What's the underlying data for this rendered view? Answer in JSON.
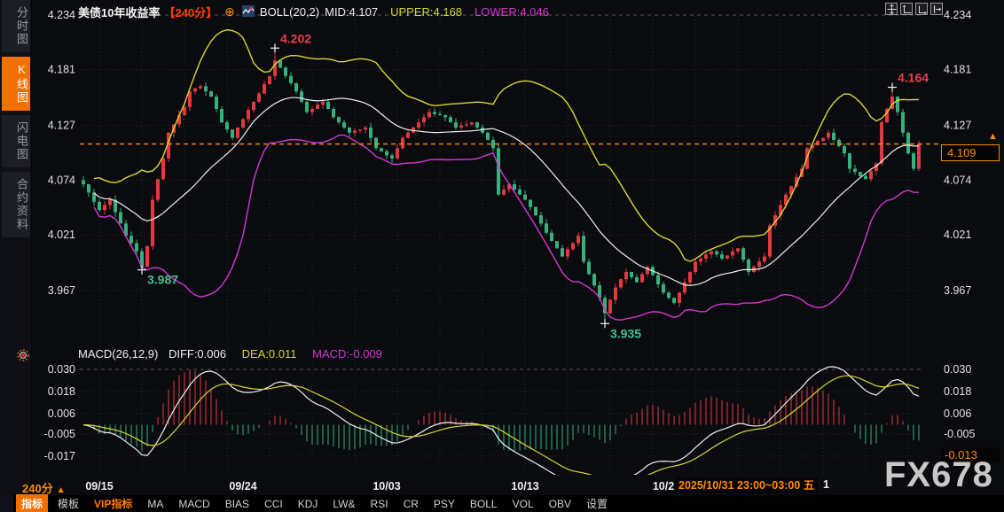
{
  "sidebar": {
    "tabs": [
      {
        "label": "分时图",
        "active": false
      },
      {
        "label": "K线图",
        "active": true
      },
      {
        "label": "闪电图",
        "active": false
      },
      {
        "label": "合约资料",
        "active": false
      }
    ]
  },
  "header": {
    "title": "美债10年收益率",
    "interval_tag": "【240分】",
    "expand_icon": "⊕",
    "boll_legend": {
      "name": "BOLL(20,2)",
      "mid": "MID:4.107",
      "upper": "UPPER:4.168",
      "lower": "LOWER:4.046"
    }
  },
  "macd_legend": {
    "name": "MACD(26,12,9)",
    "diff": "DIFF:0.006",
    "dea": "DEA:0.011",
    "macd": "MACD:-0.009"
  },
  "price_axis": {
    "left_labels": [
      "4.234",
      "4.181",
      "4.127",
      "4.074",
      "4.021",
      "3.967"
    ],
    "right_labels": [
      "4.234",
      "4.181",
      "4.127",
      "4.074",
      "4.021",
      "3.967"
    ],
    "current_price": "4.109"
  },
  "macd_axis": {
    "left_labels": [
      "0.030",
      "0.018",
      "0.006",
      "-0.005",
      "-0.017"
    ],
    "right_labels": [
      "0.030",
      "0.018",
      "0.006",
      "-0.005"
    ],
    "current_value": "-0.013"
  },
  "time_axis": {
    "interval": "240分",
    "interval_arrow": "▲",
    "labels": [
      "09/15",
      "09/24",
      "10/03",
      "10/13",
      "10/2"
    ],
    "tooltip": "2025/10/31 23:00~03:00 五",
    "after_tooltip": "1"
  },
  "bottom_bar": {
    "items": [
      {
        "label": "指标",
        "style": "active"
      },
      {
        "label": "模板",
        "style": ""
      },
      {
        "label": "VIP指标",
        "style": "vip"
      },
      {
        "label": "MA",
        "style": ""
      },
      {
        "label": "MACD",
        "style": ""
      },
      {
        "label": "BIAS",
        "style": ""
      },
      {
        "label": "CCI",
        "style": ""
      },
      {
        "label": "KDJ",
        "style": ""
      },
      {
        "label": "LW&",
        "style": ""
      },
      {
        "label": "RSI",
        "style": ""
      },
      {
        "label": "CR",
        "style": ""
      },
      {
        "label": "PSY",
        "style": ""
      },
      {
        "label": "BOLL",
        "style": ""
      },
      {
        "label": "VOL",
        "style": ""
      },
      {
        "label": "OBV",
        "style": ""
      },
      {
        "label": "设置",
        "style": ""
      }
    ]
  },
  "watermark": "FX678",
  "colors": {
    "up": "#e23940",
    "down": "#35b17e",
    "boll_upper": "#d6d632",
    "boll_mid": "#f0f0f0",
    "boll_lower": "#d238d2",
    "accent_orange": "#ff8a00",
    "tag_red": "#ff3e00",
    "grid": "#2a2b31",
    "grid_bright": "#55565e",
    "axis_text": "#e2e2e2",
    "annotation_high": "#e8404a",
    "annotation_low": "#45c08e"
  },
  "chart_data": {
    "type": "candlestick",
    "title": "美债10年收益率",
    "interval": "240分",
    "indicator_top": {
      "name": "BOLL",
      "period": 20,
      "mult": 2,
      "mid": 4.107,
      "upper": 4.168,
      "lower": 4.046
    },
    "indicator_bottom": {
      "name": "MACD",
      "fast": 12,
      "slow": 26,
      "signal": 9,
      "diff": 0.006,
      "dea": 0.011,
      "macd": -0.009
    },
    "price_ticks": [
      4.234,
      4.181,
      4.127,
      4.074,
      4.021,
      3.967
    ],
    "macd_ticks": [
      0.03,
      0.018,
      0.006,
      -0.005,
      -0.017
    ],
    "current_price": 4.109,
    "current_macd": -0.013,
    "closes": [
      4.07,
      4.062,
      4.053,
      4.045,
      4.05,
      4.055,
      4.043,
      4.032,
      4.02,
      4.013,
      4.005,
      3.99,
      4.01,
      4.055,
      4.075,
      4.095,
      4.12,
      4.128,
      4.137,
      4.145,
      4.16,
      4.163,
      4.165,
      4.16,
      4.155,
      4.143,
      4.13,
      4.123,
      4.115,
      4.125,
      4.133,
      4.142,
      4.15,
      4.158,
      4.167,
      4.175,
      4.19,
      4.183,
      4.175,
      4.168,
      4.16,
      4.15,
      4.14,
      4.143,
      4.147,
      4.15,
      4.143,
      4.135,
      4.13,
      4.125,
      4.12,
      4.122,
      4.123,
      4.125,
      4.115,
      4.105,
      4.102,
      4.098,
      4.095,
      4.105,
      4.115,
      4.12,
      4.125,
      4.13,
      4.135,
      4.14,
      4.138,
      4.137,
      4.135,
      4.13,
      4.125,
      4.127,
      4.128,
      4.13,
      4.125,
      4.12,
      4.113,
      4.105,
      4.06,
      4.065,
      4.07,
      4.065,
      4.06,
      4.055,
      4.048,
      4.04,
      4.032,
      4.023,
      4.015,
      4.008,
      4.0,
      4.007,
      4.013,
      4.02,
      3.995,
      3.983,
      3.972,
      3.96,
      3.945,
      3.958,
      3.97,
      3.978,
      3.985,
      3.98,
      3.975,
      3.983,
      3.99,
      3.982,
      3.973,
      3.965,
      3.96,
      3.955,
      3.965,
      3.975,
      3.985,
      3.995,
      3.998,
      4.002,
      4.005,
      4.002,
      3.998,
      4.001,
      4.005,
      4.008,
      3.997,
      3.985,
      3.99,
      3.995,
      4.0,
      4.03,
      4.04,
      4.05,
      4.06,
      4.068,
      4.077,
      4.085,
      4.105,
      4.108,
      4.112,
      4.115,
      4.12,
      4.113,
      4.107,
      4.1,
      4.085,
      4.082,
      4.078,
      4.075,
      4.083,
      4.09,
      4.13,
      4.143,
      4.155,
      4.14,
      4.12,
      4.1,
      4.085,
      4.109
    ],
    "wick_overrides": {
      "11": {
        "low": 3.987
      },
      "36": {
        "high": 4.202
      },
      "98": {
        "low": 3.935
      },
      "152": {
        "high": 4.164
      }
    },
    "annotations": [
      {
        "index": 36,
        "price": 4.202,
        "label": "4.202",
        "kind": "high"
      },
      {
        "index": 11,
        "price": 3.987,
        "label": "3.987",
        "kind": "low"
      },
      {
        "index": 98,
        "price": 3.935,
        "label": "3.935",
        "kind": "low"
      },
      {
        "index": 152,
        "price": 4.164,
        "label": "4.164",
        "kind": "high"
      }
    ],
    "x_labels": [
      {
        "label": "09/15",
        "index": 3
      },
      {
        "label": "09/24",
        "index": 30
      },
      {
        "label": "10/03",
        "index": 57
      },
      {
        "label": "10/13",
        "index": 83
      },
      {
        "label": "10/2",
        "index": 109
      }
    ]
  }
}
